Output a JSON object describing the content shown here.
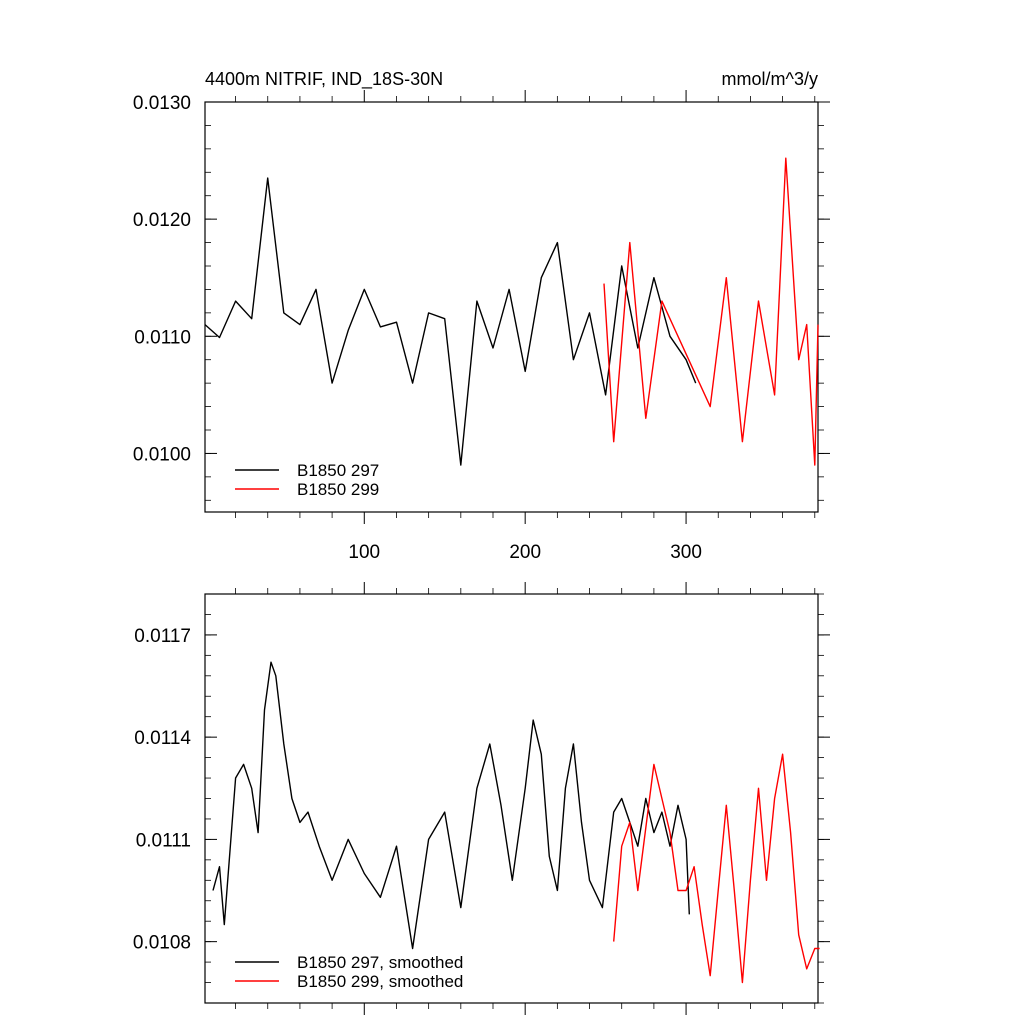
{
  "chart_data": [
    {
      "type": "line",
      "title": "4400m NITRIF, IND_18S-30N",
      "units_label": "mmol/m^3/y",
      "xlim": [
        1,
        382
      ],
      "ylim": [
        0.0095,
        0.013
      ],
      "x_ticks": [
        100,
        200,
        300
      ],
      "x_tick_labels": [
        "100",
        "200",
        "300"
      ],
      "y_ticks": [
        0.01,
        0.011,
        0.012,
        0.013
      ],
      "y_tick_labels": [
        "0.0100",
        "0.0110",
        "0.0120",
        "0.0130"
      ],
      "grid": false,
      "legend": "bottom-left",
      "series": [
        {
          "name": "B1850 297",
          "color": "#000000",
          "x": [
            1,
            10,
            20,
            30,
            40,
            50,
            60,
            70,
            80,
            90,
            100,
            110,
            120,
            130,
            140,
            150,
            160,
            170,
            180,
            190,
            200,
            210,
            220,
            230,
            240,
            250,
            260,
            270,
            280,
            290,
            300,
            306
          ],
          "values": [
            0.0111,
            0.01099,
            0.0113,
            0.01115,
            0.01235,
            0.0112,
            0.0111,
            0.0114,
            0.0106,
            0.01105,
            0.0114,
            0.01108,
            0.01112,
            0.0106,
            0.0112,
            0.01115,
            0.0099,
            0.0113,
            0.0109,
            0.0114,
            0.0107,
            0.0115,
            0.0118,
            0.0108,
            0.0112,
            0.0105,
            0.0116,
            0.0109,
            0.0115,
            0.011,
            0.0108,
            0.0106
          ]
        },
        {
          "name": "B1850 299",
          "color": "#ff0000",
          "x": [
            249,
            255,
            265,
            275,
            285,
            295,
            305,
            315,
            325,
            335,
            345,
            355,
            362,
            370,
            375,
            380,
            382
          ],
          "values": [
            0.01145,
            0.0101,
            0.0118,
            0.0103,
            0.0113,
            0.011,
            0.0107,
            0.0104,
            0.0115,
            0.0101,
            0.0113,
            0.0105,
            0.01252,
            0.0108,
            0.0111,
            0.0099,
            0.0111
          ]
        }
      ]
    },
    {
      "type": "line",
      "xlim": [
        1,
        382
      ],
      "ylim": [
        0.01062,
        0.01182
      ],
      "x_ticks": [
        100,
        200,
        300
      ],
      "y_ticks": [
        0.0108,
        0.0111,
        0.0114,
        0.0117
      ],
      "y_tick_labels": [
        "0.0108",
        "0.0111",
        "0.0114",
        "0.0117"
      ],
      "grid": false,
      "legend": "bottom-left",
      "series": [
        {
          "name": "B1850 297, smoothed",
          "color": "#000000",
          "x": [
            6,
            10,
            13,
            20,
            25,
            30,
            34,
            38,
            42,
            45,
            50,
            55,
            60,
            65,
            72,
            80,
            90,
            100,
            110,
            120,
            130,
            140,
            150,
            160,
            170,
            178,
            185,
            192,
            200,
            205,
            210,
            215,
            220,
            225,
            230,
            235,
            240,
            248,
            255,
            260,
            265,
            270,
            275,
            280,
            285,
            290,
            295,
            300,
            302
          ],
          "values": [
            0.01095,
            0.01102,
            0.01085,
            0.01128,
            0.01132,
            0.01125,
            0.01112,
            0.01148,
            0.01162,
            0.01158,
            0.01138,
            0.01122,
            0.01115,
            0.01118,
            0.01108,
            0.01098,
            0.0111,
            0.011,
            0.01093,
            0.01108,
            0.01078,
            0.0111,
            0.01118,
            0.0109,
            0.01125,
            0.01138,
            0.0112,
            0.01098,
            0.01125,
            0.01145,
            0.01135,
            0.01105,
            0.01095,
            0.01125,
            0.01138,
            0.01115,
            0.01098,
            0.0109,
            0.01118,
            0.01122,
            0.01115,
            0.01108,
            0.01122,
            0.01112,
            0.01118,
            0.01108,
            0.0112,
            0.0111,
            0.01088
          ]
        },
        {
          "name": "B1850 299, smoothed",
          "color": "#ff0000",
          "x": [
            255,
            260,
            265,
            270,
            280,
            285,
            290,
            295,
            300,
            305,
            310,
            315,
            320,
            325,
            330,
            335,
            340,
            345,
            350,
            355,
            360,
            365,
            370,
            375,
            380,
            383
          ],
          "values": [
            0.0108,
            0.01108,
            0.01115,
            0.01095,
            0.01132,
            0.01122,
            0.01112,
            0.01095,
            0.01095,
            0.01102,
            0.01085,
            0.0107,
            0.01095,
            0.0112,
            0.01095,
            0.01068,
            0.01098,
            0.01125,
            0.01098,
            0.01122,
            0.01135,
            0.01112,
            0.01082,
            0.01072,
            0.01078,
            0.01078
          ]
        }
      ]
    }
  ]
}
